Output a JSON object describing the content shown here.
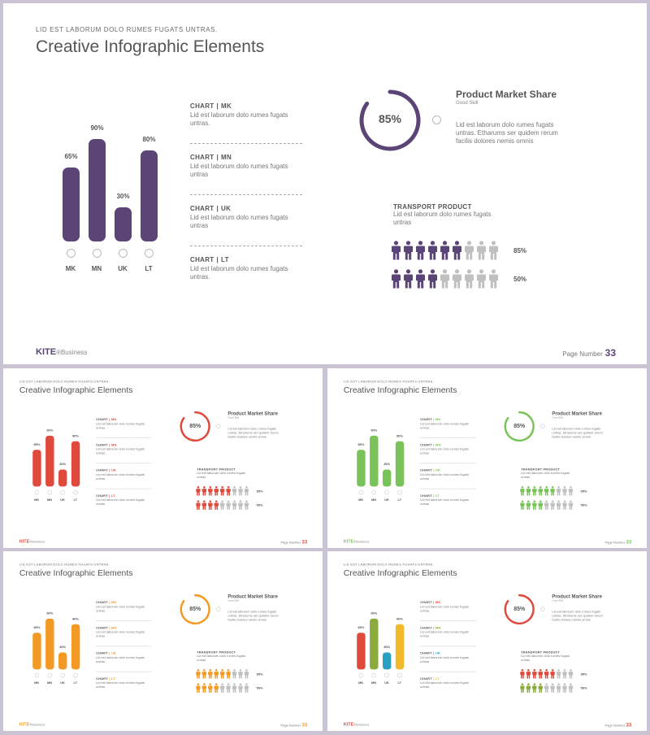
{
  "slide": {
    "subtitle": "LID EST LABORUM  DOLO  RUMES  FUGATS  UNTRAS.",
    "title": "Creative Infographic Elements",
    "bars": [
      {
        "label": "MK",
        "value": 65,
        "value_label": "65%"
      },
      {
        "label": "MN",
        "value": 90,
        "value_label": "90%"
      },
      {
        "label": "UK",
        "value": 30,
        "value_label": "30%"
      },
      {
        "label": "LT",
        "value": 80,
        "value_label": "80%"
      }
    ],
    "items": [
      {
        "head_a": "CHART",
        "sep": "|",
        "head_b": "MK",
        "text": "Lid est laborum dolo rumes fugats untras."
      },
      {
        "head_a": "CHART",
        "sep": "|",
        "head_b": "MN",
        "text": "Lid est laborum dolo rumes fugats untras"
      },
      {
        "head_a": "CHART",
        "sep": "|",
        "head_b": "UK",
        "text": "Lid est laborum dolo rumes fugats untras"
      },
      {
        "head_a": "CHART",
        "sep": "|",
        "head_b": "LT",
        "text": "Lid est laborum dolo rumes fugats untras."
      }
    ],
    "market_share": {
      "value": 85,
      "value_label": "85%",
      "title": "Product Market Share",
      "subtitle": "Good Skill",
      "text": "Lid est laborum dolo rumes fugats untras. Etharums ser quidem rerum facilis dolores nemis omnis"
    },
    "transport": {
      "title": "TRANSPORT PRODUCT",
      "text": "Lid est laborum dolo rumes fugats untras",
      "rows": [
        {
          "filled": 6,
          "total": 9,
          "label": "85%"
        },
        {
          "filled": 4,
          "total": 9,
          "label": "50%"
        }
      ]
    },
    "footer": {
      "logo": "KITE",
      "logo_sub": "®Business",
      "page_label": "Page  Number",
      "page_number": "33"
    }
  },
  "themes": [
    {
      "name": "purple",
      "accent": "#5b4476",
      "bars": [
        "#5b4476",
        "#5b4476",
        "#5b4476",
        "#5b4476"
      ]
    },
    {
      "name": "red",
      "accent": "#e04a3c",
      "bars": [
        "#e04a3c",
        "#e04a3c",
        "#e04a3c",
        "#e04a3c"
      ]
    },
    {
      "name": "green",
      "accent": "#7ac35a",
      "bars": [
        "#7ac35a",
        "#7ac35a",
        "#7ac35a",
        "#7ac35a"
      ]
    },
    {
      "name": "orange",
      "accent": "#f39a24",
      "bars": [
        "#f39a24",
        "#f39a24",
        "#f39a24",
        "#f39a24"
      ]
    },
    {
      "name": "multi",
      "accent": "#e04a3c",
      "bars": [
        "#e04a3c",
        "#8bab3e",
        "#2a9fc0",
        "#f2b92c"
      ],
      "item_colors": [
        "#e04a3c",
        "#8bab3e",
        "#2a9fc0",
        "#f2b92c"
      ],
      "people_colors": [
        "#e04a3c",
        "#8bab3e"
      ]
    }
  ],
  "colors": {
    "inactive": "#c0c0c0",
    "text": "#555555"
  }
}
